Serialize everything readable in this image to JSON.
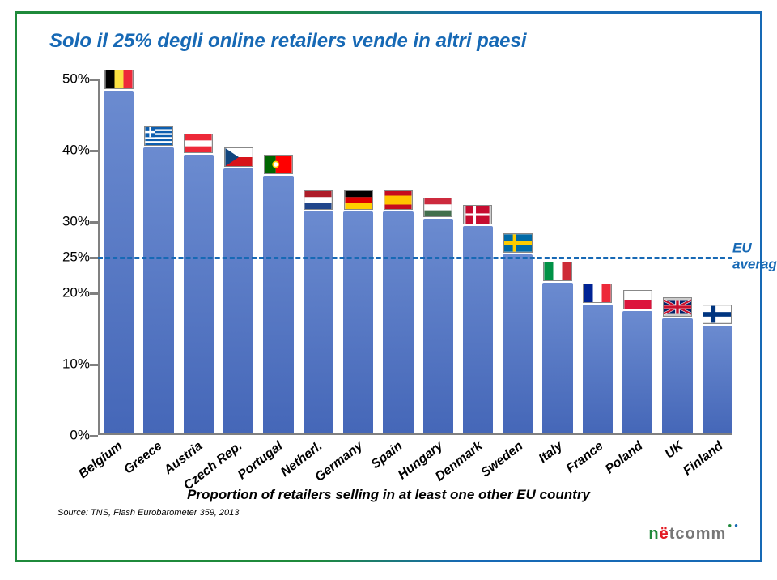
{
  "title": "Solo il 25% degli online retailers vende in altri paesi",
  "subtitle": "Proportion of retailers selling in at least one other EU country",
  "source": "Source: TNS, Flash Eurobarometer 359, 2013",
  "chart": {
    "type": "bar",
    "ylim": [
      0,
      50
    ],
    "yticks": [
      0,
      10,
      20,
      30,
      40,
      50
    ],
    "ylabels": [
      "0%",
      "10%",
      "20%",
      "30%",
      "40%",
      "50%"
    ],
    "extra_tick": {
      "pos": 25,
      "label": "25%"
    },
    "avg_line": {
      "pos": 25,
      "color": "#1769b5",
      "label": "EU average",
      "label_color": "#1769b5"
    },
    "bar_color": "#5b7bc4",
    "bar_gradient_top": "#6b8bd0",
    "bar_gradient_bottom": "#4567b8",
    "axis_color": "#808080",
    "categories": [
      "Belgium",
      "Greece",
      "Austria",
      "Czech Rep.",
      "Portugal",
      "Netherl.",
      "Germany",
      "Spain",
      "Hungary",
      "Denmark",
      "Sweden",
      "Italy",
      "France",
      "Poland",
      "UK",
      "Finland"
    ],
    "values": [
      48,
      40,
      39,
      37,
      36,
      31,
      31,
      31,
      30,
      29,
      25,
      21,
      18,
      17,
      16,
      15
    ],
    "label_fontsize": 17,
    "xlabel_fontsize": 16,
    "xlabel_rotation": -38
  },
  "colors": {
    "title": "#1769b5",
    "text": "#000000",
    "background": "#ffffff",
    "border_green": "#1f8a3b",
    "border_blue": "#1769b5"
  },
  "logo_text": "nëtcomm"
}
